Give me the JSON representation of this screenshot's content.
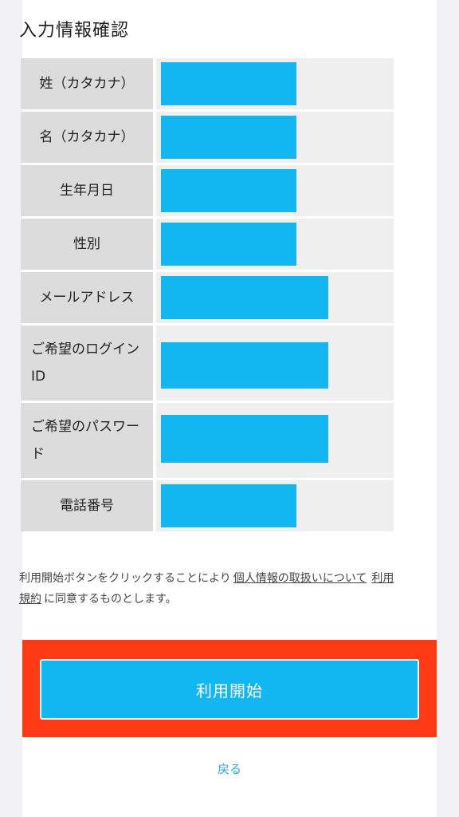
{
  "section_title": "入力情報確認",
  "rows": [
    {
      "label": "姓（カタカナ）"
    },
    {
      "label": "名（カタカナ）"
    },
    {
      "label": "生年月日"
    },
    {
      "label": "性別"
    },
    {
      "label": "メールアドレス"
    },
    {
      "label": "ご希望のログインID"
    },
    {
      "label": "ご希望のパスワード"
    },
    {
      "label": "電話番号"
    }
  ],
  "consent": {
    "prefix": "利用開始ボタンをクリックすることにより",
    "link_privacy": "個人情報の取扱いについて",
    "link_terms": "利用規約",
    "suffix": "に同意するものとします。"
  },
  "buttons": {
    "start": "利用開始",
    "back": "戻る"
  },
  "colors": {
    "accent": "#12b7f2",
    "highlight": "#ff3b15"
  }
}
